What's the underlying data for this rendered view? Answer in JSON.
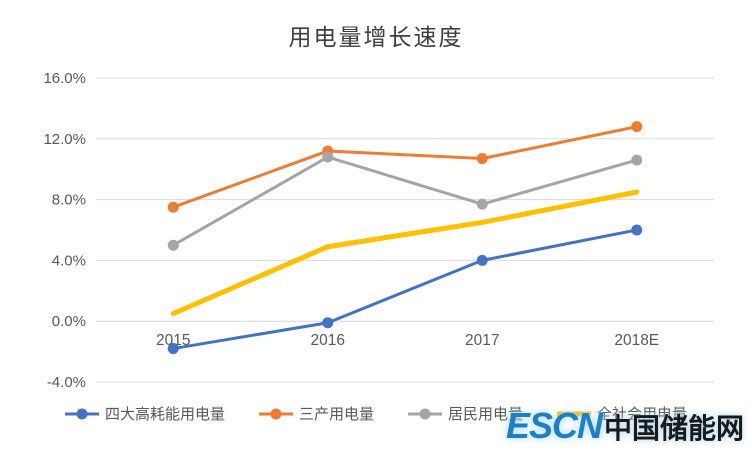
{
  "chart_data": {
    "type": "line",
    "title": "用电量增长速度",
    "categories": [
      "2015",
      "2016",
      "2017",
      "2018E"
    ],
    "series": [
      {
        "name": "四大高耗能用电量",
        "color": "#4472C4",
        "values": [
          -1.8,
          -0.1,
          4.0,
          6.0
        ],
        "marker": true,
        "width": 3
      },
      {
        "name": "三产用电量",
        "color": "#ED7D31",
        "values": [
          7.5,
          11.2,
          10.7,
          12.8
        ],
        "marker": true,
        "width": 3
      },
      {
        "name": "居民用电量",
        "color": "#A5A5A5",
        "values": [
          5.0,
          10.8,
          7.7,
          10.6
        ],
        "marker": true,
        "width": 3
      },
      {
        "name": "全社会用电量",
        "color": "#FFC000",
        "values": [
          0.5,
          4.9,
          6.5,
          8.5
        ],
        "marker": false,
        "width": 5
      }
    ],
    "ylim": [
      -4,
      16
    ],
    "ytick_step": 4,
    "ytick_labels": [
      "16.0%",
      "12.0%",
      "8.0%",
      "4.0%",
      "0.0%",
      "-4.0%"
    ],
    "grid": true,
    "legend_position": "bottom"
  },
  "watermark": {
    "logo": "ESCN",
    "text": "中国储能网"
  },
  "colors": {
    "grid": "#D9D9D9",
    "axis_text": "#595959",
    "title_text": "#3f3f3f",
    "logo_blue": "#1b80c4",
    "logo_dark": "#1a1a1a"
  }
}
